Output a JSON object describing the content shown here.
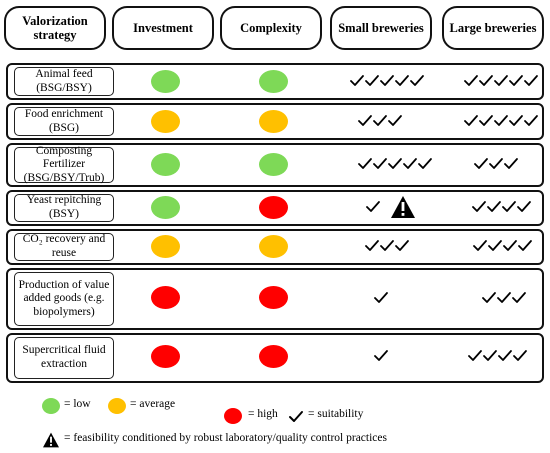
{
  "headers": {
    "strategy": "Valorization strategy",
    "investment": "Investment",
    "complexity": "Complexity",
    "small": "Small breweries",
    "large": "Large breweries"
  },
  "rows": [
    {
      "strategy": "Animal feed (BSG/BSY)",
      "investment": "low",
      "complexity": "low",
      "small_checks": 5,
      "large_checks": 5,
      "small_warning": false
    },
    {
      "strategy": "Food enrichment (BSG)",
      "investment": "average",
      "complexity": "average",
      "small_checks": 3,
      "large_checks": 5,
      "small_warning": false
    },
    {
      "strategy": "Composting Fertilizer (BSG/BSY/Trub)",
      "investment": "low",
      "complexity": "low",
      "small_checks": 5,
      "large_checks": 3,
      "small_warning": false
    },
    {
      "strategy": "Yeast repitching (BSY)",
      "investment": "low",
      "complexity": "high",
      "small_checks": 1,
      "large_checks": 4,
      "small_warning": true
    },
    {
      "strategy": "CO₂ recovery and reuse",
      "investment": "average",
      "complexity": "average",
      "small_checks": 3,
      "large_checks": 4,
      "small_warning": false
    },
    {
      "strategy": "Production of value added goods (e.g. biopolymers)",
      "investment": "high",
      "complexity": "high",
      "small_checks": 1,
      "large_checks": 3,
      "small_warning": false
    },
    {
      "strategy": "Supercritical fluid extraction",
      "investment": "high",
      "complexity": "high",
      "small_checks": 1,
      "large_checks": 4,
      "small_warning": false
    }
  ],
  "legend": {
    "low": "= low",
    "average": "= average",
    "high": "= high",
    "suitability": "= suitability",
    "warning": "= feasibility conditioned by robust laboratory/quality control practices"
  },
  "colors": {
    "low": "#7ed957",
    "average": "#ffc000",
    "high": "#ff0000"
  }
}
